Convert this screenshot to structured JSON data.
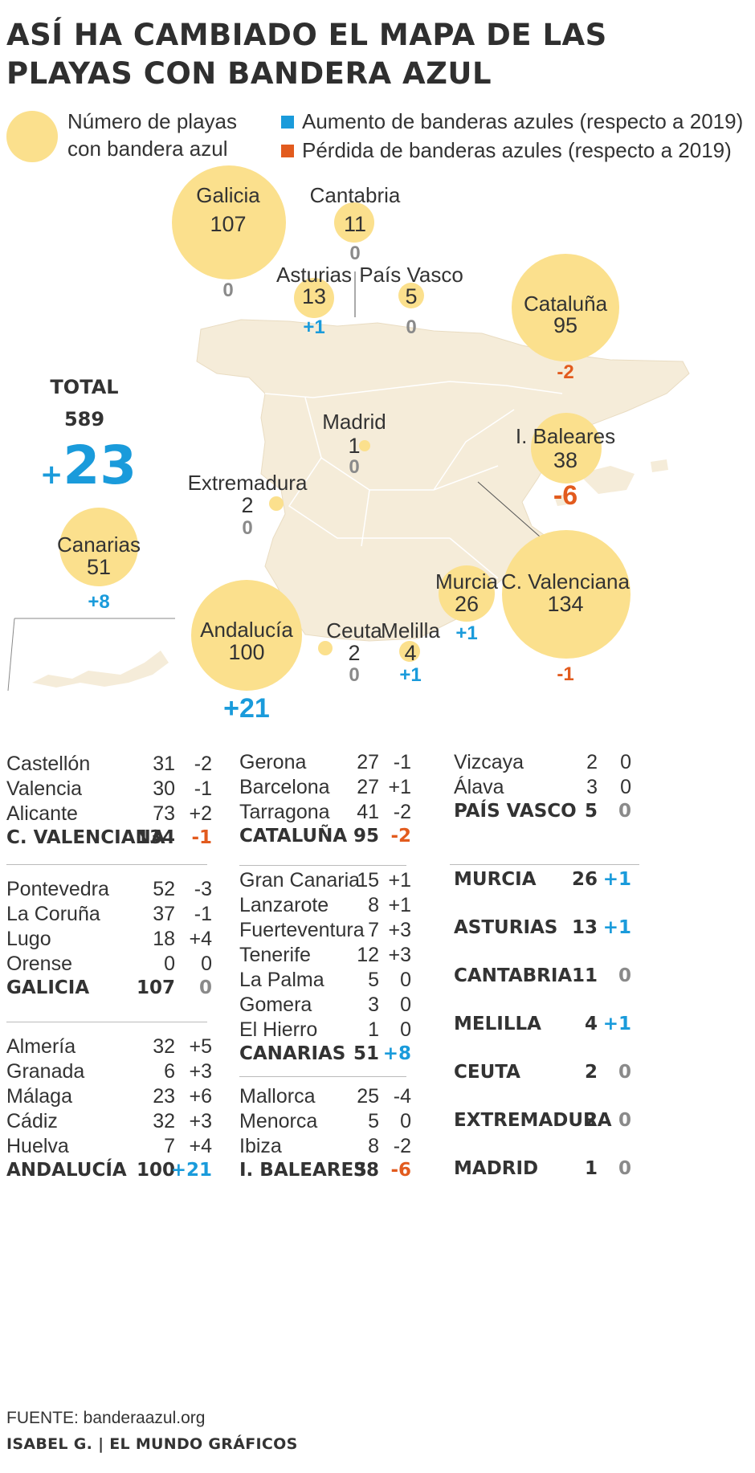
{
  "title": "ASÍ HA CAMBIADO EL MAPA DE LAS PLAYAS CON BANDERA AZUL",
  "legend": {
    "circle_label_line1": "Número de playas",
    "circle_label_line2": "con bandera azul",
    "increase_label": "Aumento de banderas azules (respecto a 2019)",
    "decrease_label": "Pérdida de banderas azules (respecto a 2019)"
  },
  "colors": {
    "bubble": "#fbe08d",
    "map_land": "#f5ecd9",
    "increase": "#1a9bdb",
    "decrease": "#e25b1e",
    "neutral": "#8a8a8a"
  },
  "total": {
    "label": "TOTAL",
    "value": "589",
    "change_sign": "+",
    "change_value": "23"
  },
  "regions": [
    {
      "name": "Galicia",
      "beaches": 107,
      "change": "0"
    },
    {
      "name": "Cantabria",
      "beaches": 11,
      "change": "0"
    },
    {
      "name": "Asturias",
      "beaches": 13,
      "change": "+1"
    },
    {
      "name": "País Vasco",
      "beaches": 5,
      "change": "0"
    },
    {
      "name": "Cataluña",
      "beaches": 95,
      "change": "-2"
    },
    {
      "name": "Madrid",
      "beaches": 1,
      "change": "0"
    },
    {
      "name": "I. Baleares",
      "beaches": 38,
      "change": "-6"
    },
    {
      "name": "Extremadura",
      "beaches": 2,
      "change": "0"
    },
    {
      "name": "Canarias",
      "beaches": 51,
      "change": "+8"
    },
    {
      "name": "Murcia",
      "beaches": 26,
      "change": "+1"
    },
    {
      "name": "C. Valenciana",
      "beaches": 134,
      "change": "-1"
    },
    {
      "name": "Andalucía",
      "beaches": 100,
      "change": "+21"
    },
    {
      "name": "Ceuta",
      "beaches": 2,
      "change": "0"
    },
    {
      "name": "Melilla",
      "beaches": 4,
      "change": "+1"
    }
  ],
  "tables": {
    "valenciana": [
      {
        "name": "Castellón",
        "value": "31",
        "change": "-2"
      },
      {
        "name": "Valencia",
        "value": "30",
        "change": "-1"
      },
      {
        "name": "Alicante",
        "value": "73",
        "change": "+2"
      },
      {
        "name": "C. VALENCIANA",
        "value": "134",
        "change": "-1",
        "total": true
      }
    ],
    "galicia": [
      {
        "name": "Pontevedra",
        "value": "52",
        "change": "-3"
      },
      {
        "name": "La Coruña",
        "value": "37",
        "change": "-1"
      },
      {
        "name": "Lugo",
        "value": "18",
        "change": "+4"
      },
      {
        "name": "Orense",
        "value": "0",
        "change": "0"
      },
      {
        "name": "GALICIA",
        "value": "107",
        "change": "0",
        "total": true
      }
    ],
    "andalucia": [
      {
        "name": "Almería",
        "value": "32",
        "change": "+5"
      },
      {
        "name": "Granada",
        "value": "6",
        "change": "+3"
      },
      {
        "name": "Málaga",
        "value": "23",
        "change": "+6"
      },
      {
        "name": "Cádiz",
        "value": "32",
        "change": "+3"
      },
      {
        "name": "Huelva",
        "value": "7",
        "change": "+4"
      },
      {
        "name": "ANDALUCÍA",
        "value": "100",
        "change": "+21",
        "total": true
      }
    ],
    "cataluna": [
      {
        "name": "Gerona",
        "value": "27",
        "change": "-1"
      },
      {
        "name": "Barcelona",
        "value": "27",
        "change": "+1"
      },
      {
        "name": "Tarragona",
        "value": "41",
        "change": "-2"
      },
      {
        "name": "CATALUÑA",
        "value": "95",
        "change": "-2",
        "total": true
      }
    ],
    "canarias": [
      {
        "name": "Gran Canaria",
        "value": "15",
        "change": "+1"
      },
      {
        "name": "Lanzarote",
        "value": "8",
        "change": "+1"
      },
      {
        "name": "Fuerteventura",
        "value": "7",
        "change": "+3"
      },
      {
        "name": "Tenerife",
        "value": "12",
        "change": "+3"
      },
      {
        "name": "La Palma",
        "value": "5",
        "change": "0"
      },
      {
        "name": "Gomera",
        "value": "3",
        "change": "0"
      },
      {
        "name": "El Hierro",
        "value": "1",
        "change": "0"
      },
      {
        "name": "CANARIAS",
        "value": "51",
        "change": "+8",
        "total": true
      }
    ],
    "baleares": [
      {
        "name": "Mallorca",
        "value": "25",
        "change": "-4"
      },
      {
        "name": "Menorca",
        "value": "5",
        "change": "0"
      },
      {
        "name": "Ibiza",
        "value": "8",
        "change": "-2"
      },
      {
        "name": "I. BALEARES",
        "value": "38",
        "change": "-6",
        "total": true
      }
    ],
    "paisvasco": [
      {
        "name": "Vizcaya",
        "value": "2",
        "change": "0"
      },
      {
        "name": "Álava",
        "value": "3",
        "change": "0"
      },
      {
        "name": "PAÍS VASCO",
        "value": "5",
        "change": "0",
        "total": true
      }
    ],
    "singles": [
      {
        "name": "MURCIA",
        "value": "26",
        "change": "+1",
        "total": true
      },
      {
        "name": "ASTURIAS",
        "value": "13",
        "change": "+1",
        "total": true
      },
      {
        "name": "CANTABRIA",
        "value": "11",
        "change": "0",
        "total": true
      },
      {
        "name": "MELILLA",
        "value": "4",
        "change": "+1",
        "total": true
      },
      {
        "name": "CEUTA",
        "value": "2",
        "change": "0",
        "total": true
      },
      {
        "name": "EXTREMADURA",
        "value": "2",
        "change": "0",
        "total": true
      },
      {
        "name": "MADRID",
        "value": "1",
        "change": "0",
        "total": true
      }
    ]
  },
  "source": "FUENTE: banderaazul.org",
  "credit": "ISABEL G. | EL MUNDO GRÁFICOS"
}
